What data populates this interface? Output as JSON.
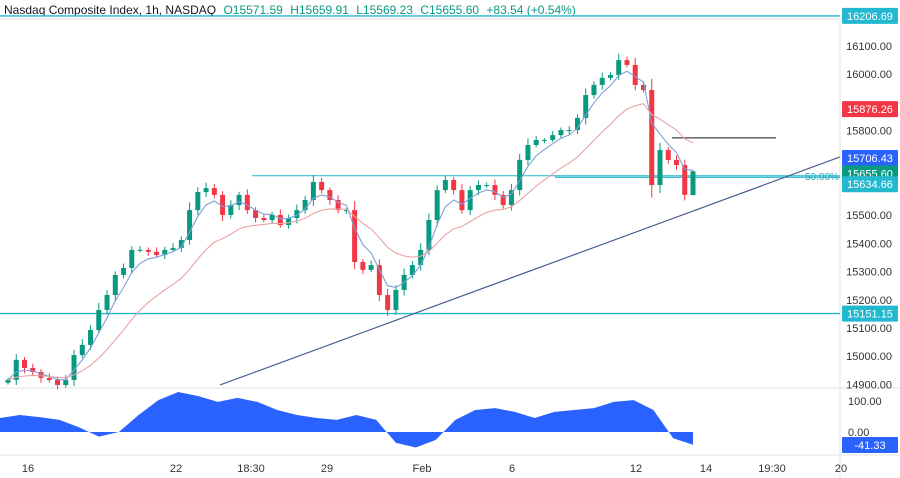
{
  "header": {
    "symbol": "Nasdaq Composite Index, 1h, NASDAQ",
    "open": "O15571.59",
    "high": "H15659.91",
    "low": "L15569.23",
    "close": "C15655.60",
    "change": "+83.54 (+0.54%)"
  },
  "chart_data": {
    "type": "candlestick",
    "ylim": [
      14880,
      16240
    ],
    "price_ticks": [
      "16100.00",
      "16000.00",
      "15800.00",
      "15500.00",
      "15400.00",
      "15300.00",
      "15200.00",
      "15100.00",
      "15000.00",
      "14900.00"
    ],
    "time_ticks": [
      "16",
      "22",
      "18:30",
      "29",
      "Feb",
      "6",
      "12",
      "14",
      "19:30",
      "20"
    ],
    "closes": [
      14916,
      14987,
      14958,
      14944,
      14923,
      14916,
      14898,
      14916,
      15004,
      15040,
      15093,
      15164,
      15217,
      15288,
      15313,
      15377,
      15377,
      15370,
      15359,
      15377,
      15384,
      15412,
      15518,
      15582,
      15596,
      15572,
      15501,
      15536,
      15572,
      15518,
      15490,
      15483,
      15501,
      15465,
      15490,
      15518,
      15554,
      15618,
      15589,
      15554,
      15518,
      15518,
      15334,
      15306,
      15323,
      15217,
      15164,
      15235,
      15288,
      15323,
      15377,
      15483,
      15589,
      15625,
      15589,
      15518,
      15589,
      15607,
      15607,
      15572,
      15536,
      15589,
      15696,
      15749,
      15767,
      15767,
      15784,
      15802,
      15802,
      15845,
      15926,
      15962,
      15987,
      15997,
      16050,
      16033,
      15962,
      15944,
      15607,
      15731,
      15696,
      15678,
      15572,
      15655.6
    ],
    "last_candle": {
      "open": 15571.59,
      "high": 15659.91,
      "low": 15569.23,
      "close": 15655.6
    },
    "moving_averages": [
      {
        "color": "#7e9fd6",
        "last": null
      },
      {
        "color": "#e9a3a3",
        "last": 15876.26
      }
    ],
    "levels": [
      {
        "price": 16206.69,
        "label": "16206.69",
        "color": "#22b8cf"
      },
      {
        "price": 15151.15,
        "label": "15151.15",
        "color": "#22b8cf"
      },
      {
        "price": 15634.66,
        "label": "15634.66",
        "color": "#22b8cf",
        "fib": "50.00%"
      }
    ],
    "resistance_line": 15640,
    "black_line": 15774,
    "trendline": {
      "start": 14898,
      "end_label": "15706.43",
      "end": 15706.43,
      "color": "#2962ff"
    },
    "current_price": {
      "label": "15655.60",
      "color": "#089981"
    },
    "ma_label": {
      "label": "15876.26",
      "color": "#f23645"
    },
    "oscillator": {
      "ticks": [
        "100.00",
        "0.00"
      ],
      "last_label": "-41.33",
      "values": [
        45,
        55,
        48,
        39,
        15,
        -15,
        0,
        55,
        103,
        129,
        116,
        97,
        110,
        97,
        71,
        55,
        45,
        39,
        55,
        39,
        -35,
        -50,
        -26,
        39,
        71,
        77,
        65,
        45,
        65,
        71,
        77,
        97,
        103,
        71,
        -20,
        -41.33
      ],
      "color": "#2962ff"
    },
    "colors": {
      "up": "#089981",
      "down": "#f23645"
    }
  }
}
